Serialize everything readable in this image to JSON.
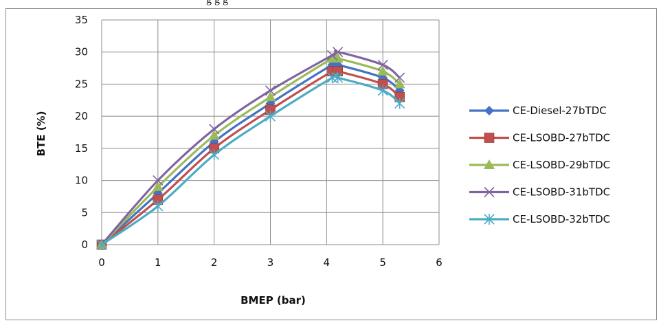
{
  "caption": "g                              g g",
  "chart_data": {
    "type": "line",
    "title": "",
    "xlabel": "BMEP (bar)",
    "ylabel": "BTE (%)",
    "xlim": [
      0,
      6
    ],
    "ylim": [
      0,
      35
    ],
    "xticks": [
      "0",
      "1",
      "2",
      "3",
      "4",
      "5",
      "6"
    ],
    "yticks": [
      "0",
      "5",
      "10",
      "15",
      "20",
      "25",
      "30",
      "35"
    ],
    "grid": true,
    "legend_position": "right",
    "x": [
      0,
      1,
      2,
      3,
      4.1,
      4.2,
      5,
      5.3
    ],
    "series": [
      {
        "name": "CE-Diesel-27bTDC",
        "color": "#4472C4",
        "marker": "diamond",
        "values": [
          0,
          8,
          16,
          22,
          28,
          28,
          26,
          24
        ]
      },
      {
        "name": "CE-LSOBD-27bTDC",
        "color": "#C0504D",
        "marker": "square",
        "values": [
          0,
          7,
          15,
          21,
          27,
          27,
          25,
          23
        ]
      },
      {
        "name": "CE-LSOBD-29bTDC",
        "color": "#9BBB59",
        "marker": "triangle",
        "values": [
          0,
          9,
          17,
          23,
          29,
          29,
          27,
          25
        ]
      },
      {
        "name": "CE-LSOBD-31bTDC",
        "color": "#8064A2",
        "marker": "x",
        "values": [
          0,
          10,
          18,
          24,
          29.5,
          30,
          28,
          26
        ]
      },
      {
        "name": "CE-LSOBD-32bTDC",
        "color": "#4BACC6",
        "marker": "star",
        "values": [
          0,
          6,
          14,
          20,
          26,
          26,
          24,
          22
        ]
      }
    ]
  }
}
